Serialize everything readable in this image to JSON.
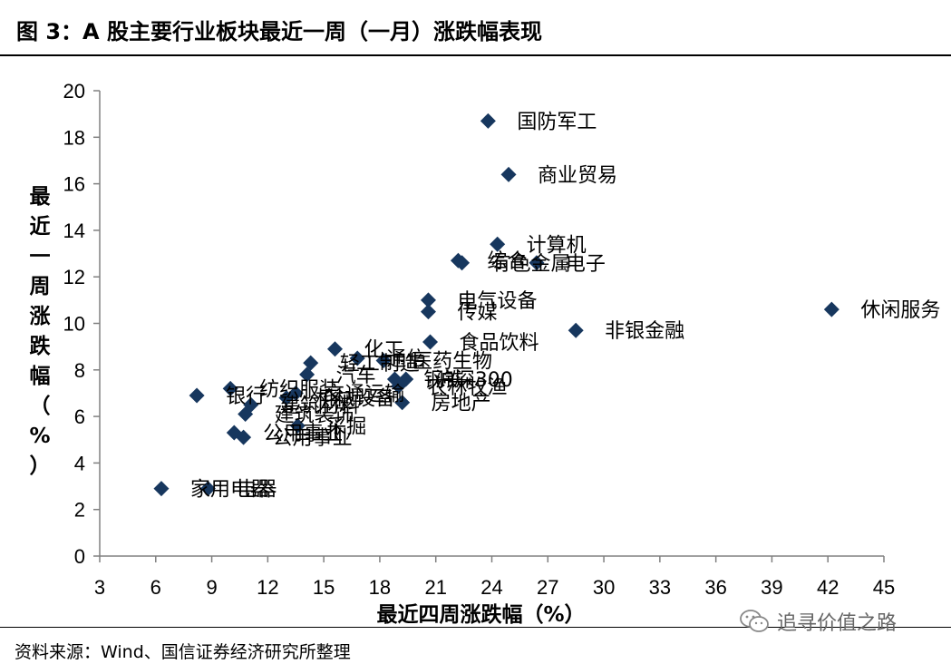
{
  "figure": {
    "title": "图 3：A 股主要行业板块最近一周（一月）涨跌幅表现",
    "source": "资料来源：Wind、国信证券经济研究所整理",
    "watermark": "追寻价值之路",
    "watermark_icon": "wechat-icon"
  },
  "colors": {
    "marker": "#17375E",
    "axis": "#808080",
    "text": "#000000"
  },
  "chart_data": {
    "type": "scatter",
    "title": "",
    "xlabel": "最近四周涨跌幅（%）",
    "ylabel": "最近一周涨跌幅（%）",
    "xlim": [
      3,
      45
    ],
    "ylim": [
      0,
      20
    ],
    "xticks": [
      3,
      6,
      9,
      12,
      15,
      18,
      21,
      24,
      27,
      30,
      33,
      36,
      39,
      42,
      45
    ],
    "yticks": [
      0,
      2,
      4,
      6,
      8,
      10,
      12,
      14,
      16,
      18,
      20
    ],
    "grid": false,
    "legend": "none",
    "marker": "diamond",
    "points": [
      {
        "x": 23.8,
        "y": 18.7,
        "label": "国防军工"
      },
      {
        "x": 24.9,
        "y": 16.4,
        "label": "商业贸易"
      },
      {
        "x": 24.3,
        "y": 13.4,
        "label": "计算机"
      },
      {
        "x": 22.2,
        "y": 12.7,
        "label": "综合"
      },
      {
        "x": 22.4,
        "y": 12.6,
        "label": "有色金属"
      },
      {
        "x": 26.4,
        "y": 12.6,
        "label": "电子"
      },
      {
        "x": 20.6,
        "y": 11.0,
        "label": "电气设备"
      },
      {
        "x": 20.6,
        "y": 10.5,
        "label": "传媒"
      },
      {
        "x": 42.2,
        "y": 10.6,
        "label": "休闲服务"
      },
      {
        "x": 28.5,
        "y": 9.7,
        "label": "非银金融"
      },
      {
        "x": 20.7,
        "y": 9.2,
        "label": "食品饮料"
      },
      {
        "x": 15.6,
        "y": 8.9,
        "label": "化工"
      },
      {
        "x": 16.8,
        "y": 8.5,
        "label": "通信"
      },
      {
        "x": 18.2,
        "y": 8.4,
        "label": "医药生物"
      },
      {
        "x": 14.3,
        "y": 8.3,
        "label": "轻工制造"
      },
      {
        "x": 14.1,
        "y": 7.8,
        "label": "汽车"
      },
      {
        "x": 18.8,
        "y": 7.6,
        "label": "钢铁"
      },
      {
        "x": 19.4,
        "y": 7.6,
        "label": "沪深300"
      },
      {
        "x": 19.0,
        "y": 7.3,
        "label": "农林牧渔"
      },
      {
        "x": 8.2,
        "y": 6.9,
        "label": "银行"
      },
      {
        "x": 10.0,
        "y": 7.2,
        "label": "纺织服装"
      },
      {
        "x": 13.5,
        "y": 7.0,
        "label": "交通运输"
      },
      {
        "x": 13.0,
        "y": 6.8,
        "label": "机械设备"
      },
      {
        "x": 11.1,
        "y": 6.5,
        "label": "建筑材料"
      },
      {
        "x": 10.8,
        "y": 6.1,
        "label": "建筑装饰"
      },
      {
        "x": 19.2,
        "y": 6.6,
        "label": "房地产"
      },
      {
        "x": 13.6,
        "y": 5.6,
        "label": "采掘"
      },
      {
        "x": 10.2,
        "y": 5.3,
        "label": "公用事业"
      },
      {
        "x": 10.7,
        "y": 5.1,
        "label": "公用事业"
      },
      {
        "x": 6.3,
        "y": 2.9,
        "label": "家用电器"
      },
      {
        "x": 8.8,
        "y": 2.9,
        "label": "电器"
      }
    ]
  }
}
